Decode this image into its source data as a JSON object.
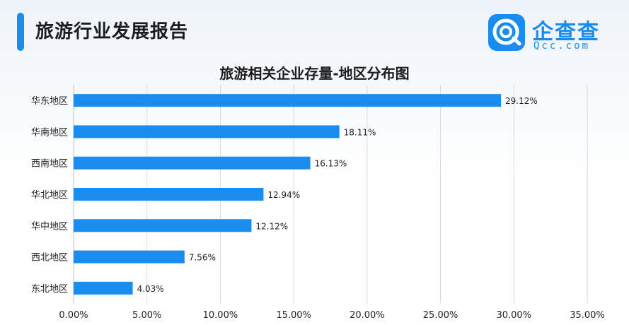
{
  "header": {
    "title": "旅游行业发展报告"
  },
  "logo": {
    "cn": "企查查",
    "en": "Qcc.com"
  },
  "colors": {
    "accent": "#1a8cf0",
    "bar": "#1a8cf0",
    "grid": "#d9d9d9"
  },
  "chart_data": {
    "type": "bar",
    "orientation": "horizontal",
    "title": "旅游相关企业存量-地区分布图",
    "categories": [
      "华东地区",
      "华南地区",
      "西南地区",
      "华北地区",
      "华中地区",
      "西北地区",
      "东北地区"
    ],
    "values": [
      29.12,
      18.11,
      16.13,
      12.94,
      12.12,
      7.56,
      4.03
    ],
    "value_labels": [
      "29.12%",
      "18.11%",
      "16.13%",
      "12.94%",
      "12.12%",
      "7.56%",
      "4.03%"
    ],
    "xlim": [
      0,
      35
    ],
    "x_ticks": [
      0,
      5,
      10,
      15,
      20,
      25,
      30,
      35
    ],
    "x_tick_labels": [
      "0.00%",
      "5.00%",
      "10.00%",
      "15.00%",
      "20.00%",
      "25.00%",
      "30.00%",
      "35.00%"
    ],
    "grid": "vertical",
    "legend": "none"
  }
}
